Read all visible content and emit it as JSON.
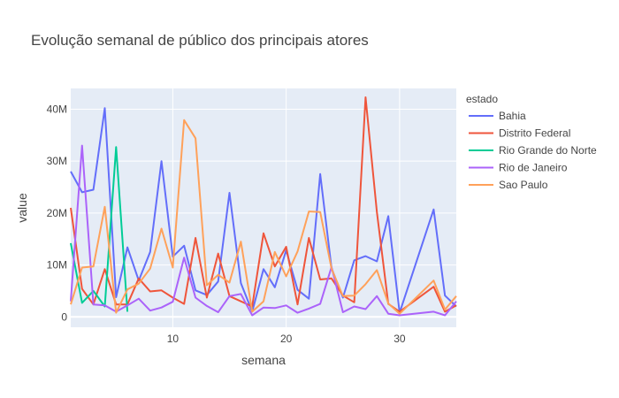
{
  "chart_data": {
    "type": "line",
    "title": "Evolução semanal de público dos principais atores",
    "xlabel": "semana",
    "ylabel": "value",
    "xlim": [
      1,
      35
    ],
    "ylim": [
      -2000000,
      44000000
    ],
    "xticks": [
      10,
      20,
      30
    ],
    "xtick_labels": [
      "10",
      "20",
      "30"
    ],
    "yticks": [
      0,
      10000000,
      20000000,
      30000000,
      40000000
    ],
    "ytick_labels": [
      "0",
      "10M",
      "20M",
      "30M",
      "40M"
    ],
    "grid": true,
    "legend": {
      "title": "estado",
      "position": "right"
    },
    "series": [
      {
        "name": "Bahia",
        "color": "#636efa",
        "x": [
          1,
          2,
          3,
          4,
          5,
          6,
          7,
          8,
          9,
          10,
          11,
          12,
          13,
          14,
          15,
          16,
          17,
          18,
          19,
          20,
          21,
          22,
          23,
          24,
          25,
          26,
          27,
          28,
          29,
          30,
          33,
          34,
          35
        ],
        "y": [
          28000000,
          24000000,
          24500000,
          40200000,
          3800000,
          13400000,
          7000000,
          12500000,
          30000000,
          11600000,
          13700000,
          5100000,
          4200000,
          6800000,
          23900000,
          6500000,
          1000000,
          9200000,
          5700000,
          12800000,
          5200000,
          3500000,
          27500000,
          9400000,
          3700000,
          10900000,
          11700000,
          10700000,
          19400000,
          800000,
          20700000,
          4100000,
          2000000
        ]
      },
      {
        "name": "Distrito Federal",
        "color": "#ef553b",
        "x": [
          1,
          2,
          3,
          4,
          5,
          6,
          7,
          8,
          9,
          10,
          11,
          12,
          13,
          14,
          15,
          16,
          17,
          18,
          19,
          20,
          21,
          22,
          23,
          24,
          25,
          26,
          27,
          28,
          29,
          30,
          33,
          34,
          35
        ],
        "y": [
          21000000,
          5400000,
          2400000,
          9200000,
          2400000,
          2400000,
          7400000,
          4900000,
          5100000,
          3700000,
          2500000,
          15200000,
          3700000,
          12200000,
          4000000,
          3000000,
          2000000,
          16100000,
          9700000,
          13500000,
          2400000,
          15200000,
          7200000,
          7400000,
          4100000,
          2800000,
          42300000,
          20200000,
          2500000,
          1000000,
          5800000,
          1000000,
          2200000
        ]
      },
      {
        "name": "Rio Grande do Norte",
        "color": "#00cc96",
        "x": [
          1,
          2,
          3,
          4,
          5,
          6
        ],
        "y": [
          14200000,
          2700000,
          5000000,
          2000000,
          32700000,
          1000000
        ]
      },
      {
        "name": "Rio de Janeiro",
        "color": "#ab63fa",
        "x": [
          1,
          2,
          3,
          4,
          5,
          6,
          7,
          8,
          9,
          10,
          11,
          12,
          13,
          14,
          15,
          16,
          17,
          18,
          19,
          20,
          21,
          22,
          23,
          24,
          25,
          26,
          27,
          28,
          29,
          30,
          33,
          34,
          35
        ],
        "y": [
          3000000,
          33000000,
          2400000,
          2200000,
          1000000,
          2200000,
          3500000,
          1200000,
          1800000,
          2900000,
          11400000,
          3700000,
          2100000,
          900000,
          4000000,
          4400000,
          300000,
          1800000,
          1700000,
          2200000,
          800000,
          1600000,
          2500000,
          9600000,
          900000,
          2000000,
          1500000,
          4000000,
          600000,
          300000,
          1000000,
          300000,
          3000000
        ]
      },
      {
        "name": "Sao Paulo",
        "color": "#ffa15a",
        "x": [
          1,
          2,
          3,
          4,
          5,
          6,
          7,
          8,
          9,
          10,
          11,
          12,
          13,
          14,
          15,
          16,
          17,
          18,
          19,
          20,
          21,
          22,
          23,
          24,
          25,
          26,
          27,
          28,
          29,
          30,
          33,
          34,
          35
        ],
        "y": [
          2400000,
          9500000,
          9700000,
          21200000,
          800000,
          5300000,
          6400000,
          9300000,
          17000000,
          9500000,
          37900000,
          34400000,
          6100000,
          8100000,
          6600000,
          14500000,
          1000000,
          3000000,
          12500000,
          7800000,
          12600000,
          20300000,
          20200000,
          9300000,
          4000000,
          4100000,
          6300000,
          9000000,
          2600000,
          600000,
          7000000,
          1400000,
          4000000
        ]
      }
    ]
  }
}
